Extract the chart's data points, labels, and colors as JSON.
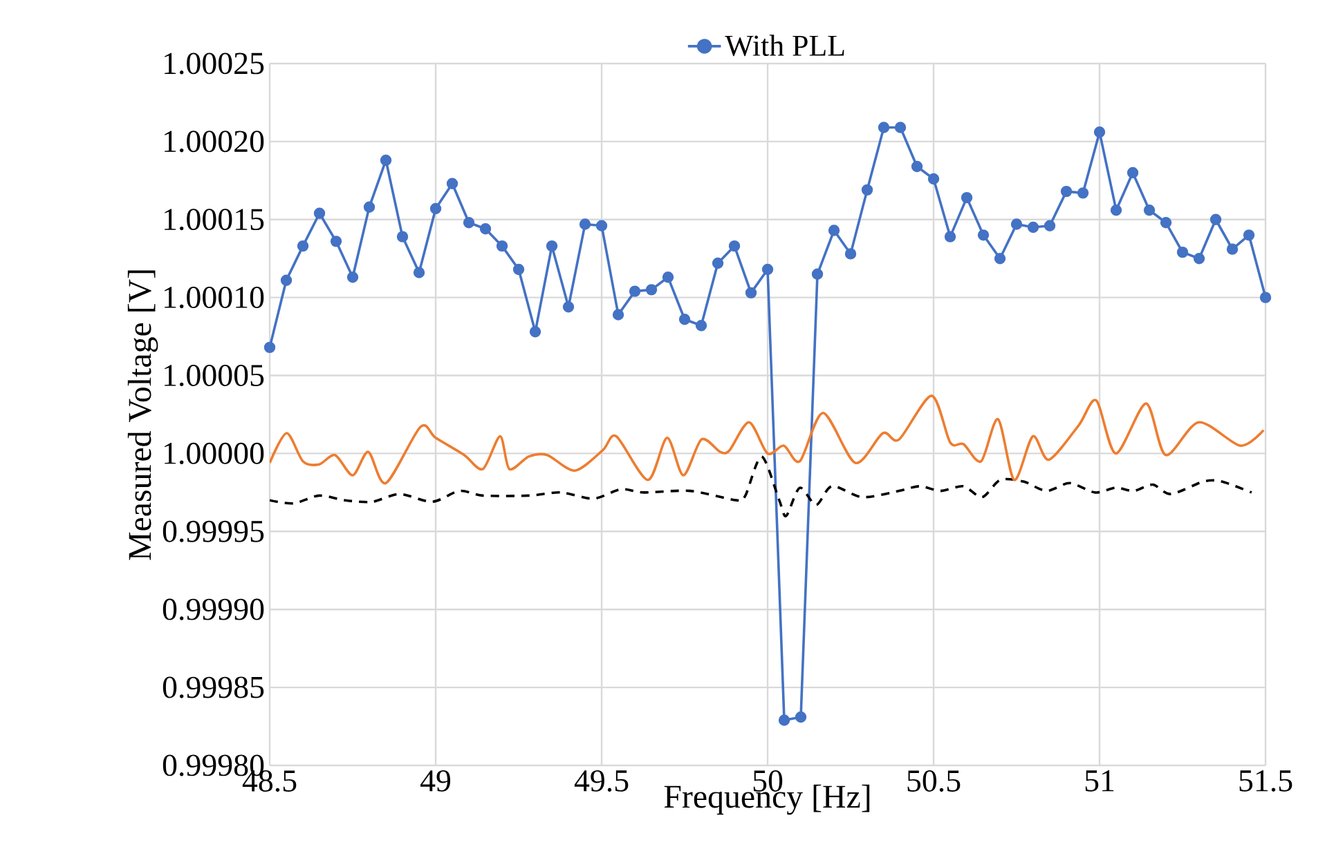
{
  "chart_data": {
    "type": "line",
    "xlabel": "Frequency [Hz]",
    "ylabel": "Measured Voltage [V]",
    "xlim": [
      48.5,
      51.5
    ],
    "xticks": [
      48.5,
      49,
      49.5,
      50,
      50.5,
      51,
      51.5
    ],
    "ylim": [
      0.9998,
      1.00025
    ],
    "yticks": [
      {
        "value": 0.9998,
        "label": "0.99980"
      },
      {
        "value": 0.99985,
        "label": "0.99985"
      },
      {
        "value": 0.9999,
        "label": "0.99990"
      },
      {
        "value": 0.99995,
        "label": "0.99995"
      },
      {
        "value": 1.0,
        "label": "1.00000"
      },
      {
        "value": 1.00005,
        "label": "1.00005"
      },
      {
        "value": 1.0001,
        "label": "1.00010"
      },
      {
        "value": 1.00015,
        "label": "1.00015"
      },
      {
        "value": 1.0002,
        "label": "1.00020"
      },
      {
        "value": 1.00025,
        "label": "1.00025"
      }
    ],
    "grid": true,
    "legend": "top",
    "series": [
      {
        "name": "With PLL",
        "color": "#4472c4",
        "marker": "circle",
        "line_style": "solid",
        "x": [
          48.5,
          48.55,
          48.6,
          48.65,
          48.7,
          48.75,
          48.8,
          48.85,
          48.9,
          48.95,
          49.0,
          49.05,
          49.1,
          49.15,
          49.2,
          49.25,
          49.3,
          49.35,
          49.4,
          49.45,
          49.5,
          49.55,
          49.6,
          49.65,
          49.7,
          49.75,
          49.8,
          49.85,
          49.9,
          49.95,
          50.0,
          50.05,
          50.1,
          50.15,
          50.2,
          50.25,
          50.3,
          50.35,
          50.4,
          50.45,
          50.5,
          50.55,
          50.6,
          50.65,
          50.7,
          50.75,
          50.8,
          50.85,
          50.9,
          50.95,
          51.0,
          51.05,
          51.1,
          51.15,
          51.2,
          51.25,
          51.3,
          51.35,
          51.4,
          51.45,
          51.5
        ],
        "values": [
          1.000068,
          1.000111,
          1.000133,
          1.000154,
          1.000136,
          1.000113,
          1.000158,
          1.000188,
          1.000139,
          1.000116,
          1.000157,
          1.000173,
          1.000148,
          1.000144,
          1.000133,
          1.000118,
          1.000078,
          1.000133,
          1.000094,
          1.000147,
          1.000146,
          1.000089,
          1.000104,
          1.000105,
          1.000113,
          1.000086,
          1.000082,
          1.000122,
          1.000133,
          1.000103,
          1.000118,
          0.999829,
          0.999831,
          1.000115,
          1.000143,
          1.000128,
          1.000169,
          1.000209,
          1.000209,
          1.000184,
          1.000176,
          1.000139,
          1.000164,
          1.00014,
          1.000125,
          1.000147,
          1.000145,
          1.000146,
          1.000168,
          1.000167,
          1.000206,
          1.000156,
          1.00018,
          1.000156,
          1.000148,
          1.000129,
          1.000125,
          1.00015,
          1.000131,
          1.00014,
          1.0001
        ]
      },
      {
        "color": "#000000",
        "marker": "none",
        "line_style": "dashed",
        "x": [
          48.5,
          48.572,
          48.649,
          48.725,
          48.808,
          48.892,
          48.989,
          49.072,
          49.142,
          49.28,
          49.378,
          49.475,
          49.558,
          49.628,
          49.767,
          49.906,
          49.933,
          49.982,
          50.035,
          50.056,
          50.097,
          50.146,
          50.194,
          50.285,
          50.396,
          50.458,
          50.521,
          50.59,
          50.646,
          50.701,
          50.771,
          50.84,
          50.91,
          50.986,
          51.049,
          51.104,
          51.16,
          51.215,
          51.313,
          51.368,
          51.458
        ],
        "values": [
          0.99997,
          0.999968,
          0.999973,
          0.99997,
          0.999969,
          0.999974,
          0.999969,
          0.999976,
          0.999973,
          0.999973,
          0.999975,
          0.999971,
          0.999977,
          0.999975,
          0.999976,
          0.99997,
          0.999973,
          0.999998,
          0.99997,
          0.99996,
          0.999978,
          0.999967,
          0.999979,
          0.999972,
          0.999976,
          0.999979,
          0.999976,
          0.999979,
          0.999972,
          0.999983,
          0.999982,
          0.999976,
          0.999981,
          0.999975,
          0.999978,
          0.999976,
          0.99998,
          0.999974,
          0.999982,
          0.999982,
          0.999975
        ]
      },
      {
        "color": "#ed7d31",
        "marker": "none",
        "line_style": "solid",
        "x": [
          48.5,
          48.551,
          48.6,
          48.649,
          48.697,
          48.75,
          48.797,
          48.85,
          48.954,
          49.0,
          49.086,
          49.142,
          49.194,
          49.222,
          49.28,
          49.336,
          49.419,
          49.503,
          49.544,
          49.639,
          49.697,
          49.746,
          49.801,
          49.857,
          49.885,
          49.944,
          50.0,
          50.049,
          50.097,
          50.167,
          50.264,
          50.347,
          50.396,
          50.494,
          50.55,
          50.59,
          50.643,
          50.694,
          50.743,
          50.799,
          50.847,
          50.937,
          50.99,
          51.049,
          51.14,
          51.199,
          51.299,
          51.424,
          51.494
        ],
        "values": [
          0.999994,
          1.000013,
          0.999995,
          0.999993,
          0.999999,
          0.999986,
          1.000001,
          0.999981,
          1.000017,
          1.00001,
          0.999999,
          0.99999,
          1.000011,
          0.99999,
          0.999998,
          0.999999,
          0.999989,
          1.000002,
          1.000011,
          0.999983,
          1.00001,
          0.999986,
          1.000009,
          1.000001,
          1.000002,
          1.00002,
          1.0,
          1.000005,
          0.999995,
          1.000026,
          0.999994,
          1.000013,
          1.000009,
          1.000037,
          1.000007,
          1.000006,
          0.999995,
          1.000022,
          0.999983,
          1.000011,
          0.999996,
          1.000018,
          1.000034,
          1.0,
          1.000032,
          0.999999,
          1.00002,
          1.000005,
          1.000015
        ]
      }
    ]
  }
}
